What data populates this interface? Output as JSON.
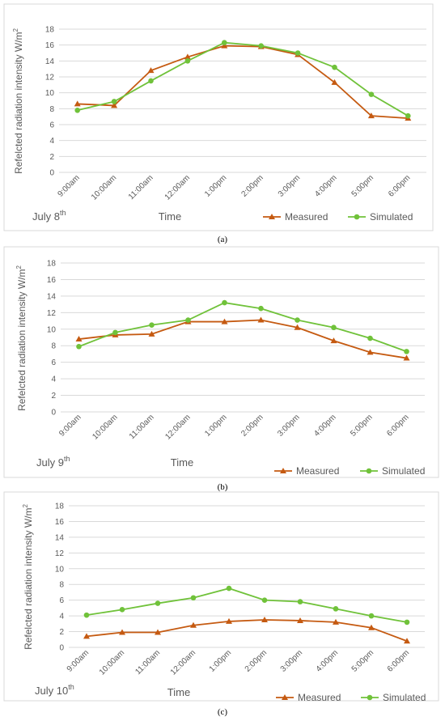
{
  "colors": {
    "measured": "#c55a11",
    "simulated": "#70c23a"
  },
  "chart_data": [
    {
      "type": "line",
      "panel_caption": "(a)",
      "date_label": "July 8",
      "date_sup": "th",
      "ylabel": "Refelcted radiation intensity W/m",
      "ylabel_sup": "2",
      "xlabel": "Time",
      "ylim": [
        0,
        18
      ],
      "yticks": [
        "0",
        "2",
        "4",
        "6",
        "8",
        "10",
        "12",
        "14",
        "16",
        "18"
      ],
      "categories": [
        "9:00am",
        "10:00am",
        "11:00am",
        "12:00am",
        "1:00pm",
        "2:00pm",
        "3:00pm",
        "4:00pm",
        "5:00pm",
        "6:00pm"
      ],
      "legend": [
        "Measured",
        "Simulated"
      ],
      "legend_position": "bottom-right",
      "grid": true,
      "series": [
        {
          "name": "Measured",
          "marker": "triangle",
          "values": [
            8.6,
            8.4,
            12.8,
            14.5,
            15.9,
            15.8,
            14.8,
            11.3,
            7.1,
            6.8
          ]
        },
        {
          "name": "Simulated",
          "marker": "circle",
          "values": [
            7.8,
            8.9,
            11.5,
            14.0,
            16.3,
            15.9,
            15.0,
            13.2,
            9.8,
            7.1
          ]
        }
      ]
    },
    {
      "type": "line",
      "panel_caption": "(b)",
      "date_label": "July 9",
      "date_sup": "th",
      "ylabel": "Refelcted radiation intensity W/m",
      "ylabel_sup": "2",
      "xlabel": "Time",
      "ylim": [
        0,
        18
      ],
      "yticks": [
        "0",
        "2",
        "4",
        "6",
        "8",
        "10",
        "12",
        "14",
        "16",
        "18"
      ],
      "categories": [
        "9:00am",
        "10:00am",
        "11:00am",
        "12:00am",
        "1:00pm",
        "2:00pm",
        "3:00pm",
        "4:00pm",
        "5:00pm",
        "6:00pm"
      ],
      "legend": [
        "Measured",
        "Simulated"
      ],
      "legend_position": "bottom-right",
      "grid": true,
      "series": [
        {
          "name": "Measured",
          "marker": "triangle",
          "values": [
            8.8,
            9.3,
            9.4,
            10.9,
            10.9,
            11.1,
            10.2,
            8.6,
            7.2,
            6.5
          ]
        },
        {
          "name": "Simulated",
          "marker": "circle",
          "values": [
            7.9,
            9.6,
            10.5,
            11.1,
            13.2,
            12.5,
            11.1,
            10.2,
            8.9,
            7.3
          ]
        }
      ]
    },
    {
      "type": "line",
      "panel_caption": "(c)",
      "date_label": "July 10",
      "date_sup": "th",
      "ylabel": "Refelcted radiation intensity W/m",
      "ylabel_sup": "2",
      "xlabel": "Time",
      "ylim": [
        0,
        18
      ],
      "yticks": [
        "0",
        "2",
        "4",
        "6",
        "8",
        "10",
        "12",
        "14",
        "16",
        "18"
      ],
      "categories": [
        "9:00am",
        "10:00am",
        "11:00am",
        "12:00am",
        "1:00pm",
        "2:00pm",
        "3:00pm",
        "4:00pm",
        "5:00pm",
        "6:00pm"
      ],
      "legend": [
        "Measured",
        "Simulated"
      ],
      "legend_position": "bottom-right",
      "grid": true,
      "series": [
        {
          "name": "Measured",
          "marker": "triangle",
          "values": [
            1.4,
            1.9,
            1.9,
            2.8,
            3.3,
            3.5,
            3.4,
            3.2,
            2.5,
            0.8
          ]
        },
        {
          "name": "Simulated",
          "marker": "circle",
          "values": [
            4.1,
            4.8,
            5.6,
            6.3,
            7.5,
            6.0,
            5.8,
            4.9,
            4.0,
            3.2
          ]
        }
      ]
    }
  ]
}
